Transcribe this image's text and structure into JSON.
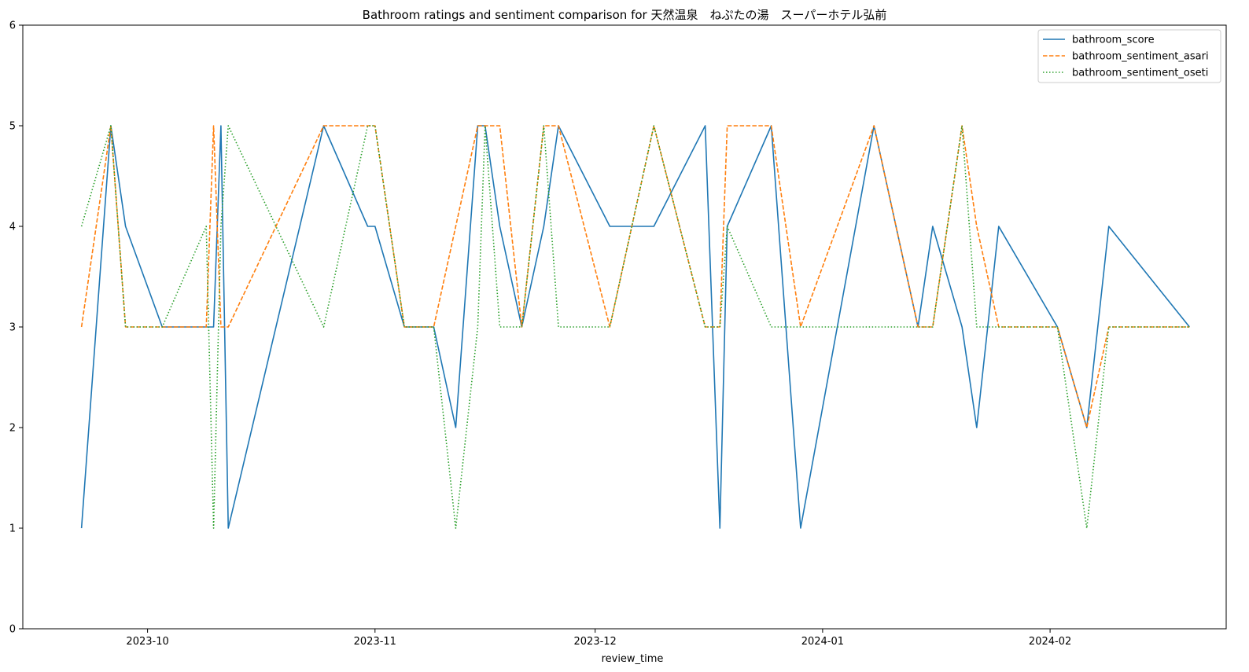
{
  "chart_data": {
    "type": "line",
    "title": "Bathroom ratings and sentiment comparison for 天然温泉　ねぷたの湯　スーパーホテル弘前",
    "xlabel": "review_time",
    "ylabel": "",
    "ylim": [
      0,
      6
    ],
    "xlim": [
      "2023-09-14",
      "2024-02-25"
    ],
    "x_ticks": [
      "2023-10-01",
      "2023-11-01",
      "2023-12-01",
      "2024-01-01",
      "2024-02-01"
    ],
    "x_tick_labels": [
      "2023-10",
      "2023-11",
      "2023-12",
      "2024-01",
      "2024-02"
    ],
    "y_ticks": [
      0,
      1,
      2,
      3,
      4,
      5,
      6
    ],
    "y_tick_labels": [
      "0",
      "1",
      "2",
      "3",
      "4",
      "5",
      "6"
    ],
    "grid": false,
    "legend_position": "top-right",
    "series": [
      {
        "name": "bathroom_score",
        "color": "#1f77b4",
        "dash": "solid",
        "points": [
          [
            "2023-09-22",
            1
          ],
          [
            "2023-09-26",
            5
          ],
          [
            "2023-09-28",
            4
          ],
          [
            "2023-10-03",
            3
          ],
          [
            "2023-10-09",
            3
          ],
          [
            "2023-10-10",
            3
          ],
          [
            "2023-10-11",
            5
          ],
          [
            "2023-10-12",
            1
          ],
          [
            "2023-10-25",
            5
          ],
          [
            "2023-10-31",
            4
          ],
          [
            "2023-11-01",
            4
          ],
          [
            "2023-11-05",
            3
          ],
          [
            "2023-11-09",
            3
          ],
          [
            "2023-11-12",
            2
          ],
          [
            "2023-11-15",
            5
          ],
          [
            "2023-11-16",
            5
          ],
          [
            "2023-11-18",
            4
          ],
          [
            "2023-11-21",
            3
          ],
          [
            "2023-11-24",
            4
          ],
          [
            "2023-11-26",
            5
          ],
          [
            "2023-12-03",
            4
          ],
          [
            "2023-12-09",
            4
          ],
          [
            "2023-12-16",
            5
          ],
          [
            "2023-12-18",
            1
          ],
          [
            "2023-12-19",
            4
          ],
          [
            "2023-12-25",
            5
          ],
          [
            "2023-12-29",
            1
          ],
          [
            "2024-01-08",
            5
          ],
          [
            "2024-01-14",
            3
          ],
          [
            "2024-01-16",
            4
          ],
          [
            "2024-01-20",
            3
          ],
          [
            "2024-01-22",
            2
          ],
          [
            "2024-01-25",
            4
          ],
          [
            "2024-02-02",
            3
          ],
          [
            "2024-02-06",
            2
          ],
          [
            "2024-02-09",
            4
          ],
          [
            "2024-02-20",
            3
          ]
        ]
      },
      {
        "name": "bathroom_sentiment_asari",
        "color": "#ff7f0e",
        "dash": "dashed",
        "points": [
          [
            "2023-09-22",
            3
          ],
          [
            "2023-09-26",
            5
          ],
          [
            "2023-09-28",
            3
          ],
          [
            "2023-10-03",
            3
          ],
          [
            "2023-10-09",
            3
          ],
          [
            "2023-10-10",
            5
          ],
          [
            "2023-10-11",
            3
          ],
          [
            "2023-10-12",
            3
          ],
          [
            "2023-10-25",
            5
          ],
          [
            "2023-10-31",
            5
          ],
          [
            "2023-11-01",
            5
          ],
          [
            "2023-11-05",
            3
          ],
          [
            "2023-11-09",
            3
          ],
          [
            "2023-11-12",
            4
          ],
          [
            "2023-11-15",
            5
          ],
          [
            "2023-11-16",
            5
          ],
          [
            "2023-11-18",
            5
          ],
          [
            "2023-11-21",
            3
          ],
          [
            "2023-11-24",
            5
          ],
          [
            "2023-11-26",
            5
          ],
          [
            "2023-12-03",
            3
          ],
          [
            "2023-12-09",
            5
          ],
          [
            "2023-12-16",
            3
          ],
          [
            "2023-12-18",
            3
          ],
          [
            "2023-12-19",
            5
          ],
          [
            "2023-12-25",
            5
          ],
          [
            "2023-12-29",
            3
          ],
          [
            "2024-01-08",
            5
          ],
          [
            "2024-01-14",
            3
          ],
          [
            "2024-01-16",
            3
          ],
          [
            "2024-01-20",
            5
          ],
          [
            "2024-01-22",
            4
          ],
          [
            "2024-01-25",
            3
          ],
          [
            "2024-02-02",
            3
          ],
          [
            "2024-02-06",
            2
          ],
          [
            "2024-02-09",
            3
          ],
          [
            "2024-02-20",
            3
          ]
        ]
      },
      {
        "name": "bathroom_sentiment_oseti",
        "color": "#2ca02c",
        "dash": "dotted",
        "points": [
          [
            "2023-09-22",
            4
          ],
          [
            "2023-09-26",
            5
          ],
          [
            "2023-09-28",
            3
          ],
          [
            "2023-10-03",
            3
          ],
          [
            "2023-10-09",
            4
          ],
          [
            "2023-10-10",
            1
          ],
          [
            "2023-10-11",
            4
          ],
          [
            "2023-10-12",
            5
          ],
          [
            "2023-10-25",
            3
          ],
          [
            "2023-10-31",
            5
          ],
          [
            "2023-11-01",
            5
          ],
          [
            "2023-11-05",
            3
          ],
          [
            "2023-11-09",
            3
          ],
          [
            "2023-11-12",
            1
          ],
          [
            "2023-11-15",
            3
          ],
          [
            "2023-11-16",
            5
          ],
          [
            "2023-11-18",
            3
          ],
          [
            "2023-11-21",
            3
          ],
          [
            "2023-11-24",
            5
          ],
          [
            "2023-11-26",
            3
          ],
          [
            "2023-12-03",
            3
          ],
          [
            "2023-12-09",
            5
          ],
          [
            "2023-12-16",
            3
          ],
          [
            "2023-12-18",
            3
          ],
          [
            "2023-12-19",
            4
          ],
          [
            "2023-12-25",
            3
          ],
          [
            "2023-12-29",
            3
          ],
          [
            "2024-01-08",
            3
          ],
          [
            "2024-01-14",
            3
          ],
          [
            "2024-01-16",
            3
          ],
          [
            "2024-01-20",
            5
          ],
          [
            "2024-01-22",
            3
          ],
          [
            "2024-01-25",
            3
          ],
          [
            "2024-02-02",
            3
          ],
          [
            "2024-02-06",
            1
          ],
          [
            "2024-02-09",
            3
          ],
          [
            "2024-02-20",
            3
          ]
        ]
      }
    ]
  }
}
